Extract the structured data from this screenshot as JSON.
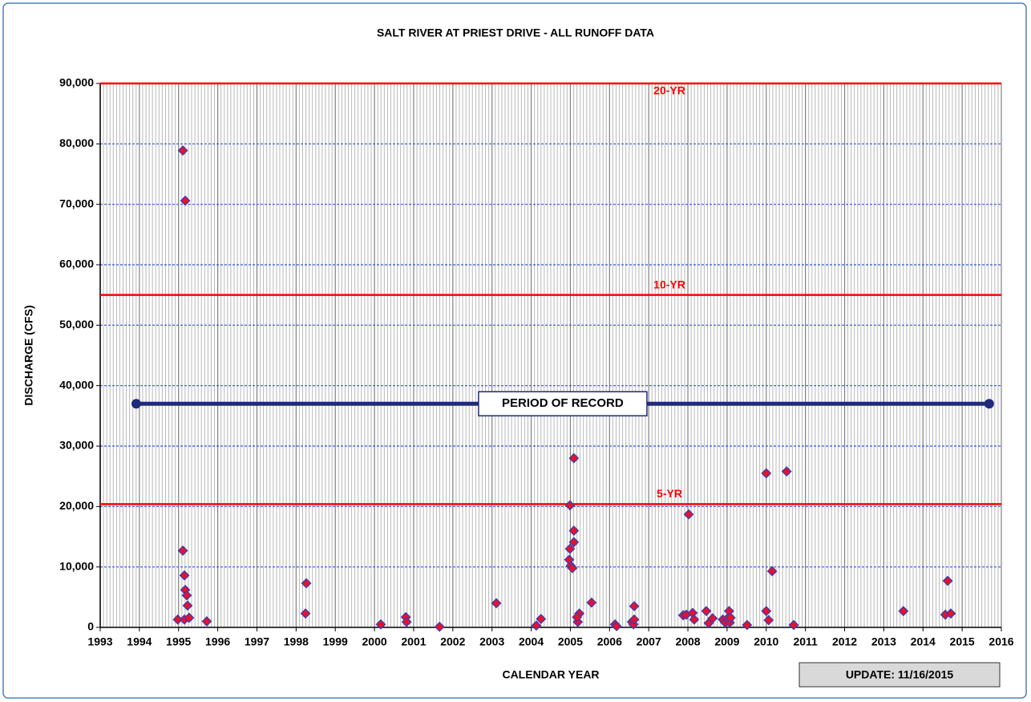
{
  "chart_data": {
    "type": "scatter",
    "title": "SALT RIVER AT PRIEST DRIVE - ALL RUNOFF DATA",
    "xlabel": "CALENDAR YEAR",
    "ylabel": "DISCHARGE (CFS)",
    "annotation": "UPDATE: 11/16/2015",
    "xlim": [
      1993,
      2016
    ],
    "xticks": [
      1993,
      1994,
      1995,
      1996,
      1997,
      1998,
      1999,
      2000,
      2001,
      2002,
      2003,
      2004,
      2005,
      2006,
      2007,
      2008,
      2009,
      2010,
      2011,
      2012,
      2013,
      2014,
      2015,
      2016
    ],
    "ylim": [
      0,
      90000
    ],
    "yticks": [
      0,
      {
        "value": 10000,
        "label": "10,000"
      },
      {
        "value": 20000,
        "label": "20,000"
      },
      {
        "value": 30000,
        "label": "30,000"
      },
      {
        "value": 40000,
        "label": "40,000"
      },
      {
        "value": 50000,
        "label": "50,000"
      },
      {
        "value": 60000,
        "label": "60,000"
      },
      {
        "value": 70000,
        "label": "70,000"
      },
      {
        "value": 80000,
        "label": "80,000"
      },
      {
        "value": 90000,
        "label": "90,000"
      }
    ],
    "grid": true,
    "series": [
      {
        "color": "#e8112d",
        "edgecolor": "#3b3bb0",
        "x": [
          1994.98,
          1995.15,
          1995.11,
          1995.17,
          1995.11,
          1995.15,
          1995.17,
          1995.21,
          1995.23,
          1995.27,
          1995.72,
          1998.24,
          1998.26,
          2000.16,
          2000.8,
          2000.82,
          2001.66,
          2003.11,
          2004.13,
          2004.25,
          2004.99,
          2005.09,
          2004.99,
          2004.97,
          2005.01,
          2005.05,
          2005.09,
          2005.09,
          2005.19,
          2005.23,
          2005.17,
          2005.54,
          2006.14,
          2006.18,
          2006.57,
          2006.61,
          2006.63,
          2006.63,
          2007.88,
          2007.96,
          2008.02,
          2008.12,
          2008.16,
          2008.47,
          2008.53,
          2008.63,
          2008.89,
          2008.95,
          2009.01,
          2009.05,
          2009.07,
          2009.09,
          2009.51,
          2010.0,
          2010.0,
          2010.06,
          2010.15,
          2010.52,
          2010.7,
          2013.5,
          2014.57,
          2014.63,
          2014.71
        ],
        "values": [
          1300,
          1300,
          78900,
          70600,
          12700,
          8600,
          6200,
          5300,
          3600,
          1600,
          1000,
          2300,
          7300,
          500,
          1700,
          900,
          100,
          4000,
          300,
          1400,
          20200,
          28000,
          13000,
          11200,
          10200,
          9800,
          14100,
          16000,
          900,
          2300,
          1700,
          4100,
          500,
          200,
          900,
          500,
          1300,
          3500,
          2000,
          2100,
          18700,
          2400,
          1300,
          2700,
          700,
          1500,
          1300,
          800,
          1500,
          2700,
          800,
          1600,
          400,
          25500,
          2700,
          1200,
          9300,
          25800,
          400,
          2700,
          2100,
          7700,
          2300
        ]
      }
    ],
    "reference_lines": [
      {
        "label": "20-YR",
        "value": 90000,
        "color": "#ff0000"
      },
      {
        "label": "10-YR",
        "value": 55000,
        "color": "#ff0000"
      },
      {
        "label": "5-YR",
        "value": 20400,
        "color": "#ff0000"
      }
    ],
    "period_of_record": {
      "label": "PERIOD OF RECORD",
      "x": [
        1993.92,
        2015.69
      ],
      "value": 37000,
      "color": "#1f2a7a"
    }
  }
}
